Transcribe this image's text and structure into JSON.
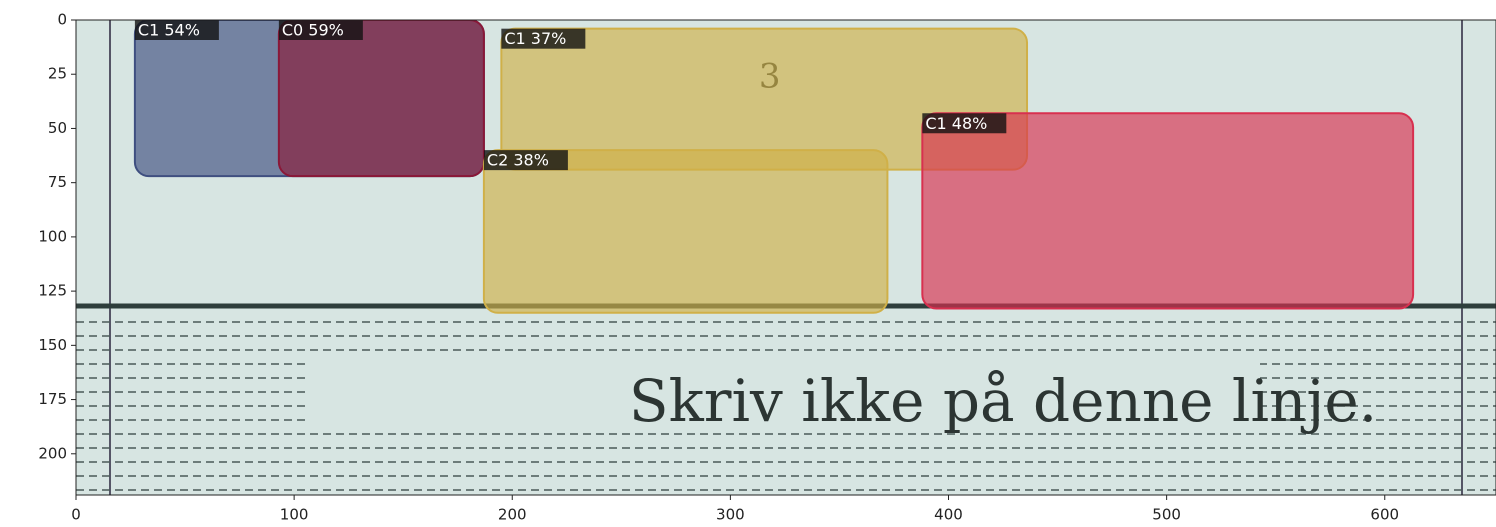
{
  "chart_data": {
    "type": "detections",
    "xlim": [
      0,
      651
    ],
    "ylim": [
      219,
      0
    ],
    "xticks": [
      0,
      100,
      200,
      300,
      400,
      500,
      600
    ],
    "yticks": [
      0,
      25,
      50,
      75,
      100,
      125,
      150,
      175,
      200
    ],
    "image_texts": [
      {
        "text": "Skriv ikke på denne linje.",
        "x": 425,
        "y": 178
      },
      {
        "text": "3",
        "x": 318,
        "y": 27
      }
    ],
    "boxes": [
      {
        "label": "C1 54%",
        "color": "#3f4f80",
        "x0": 27,
        "y0": 0,
        "x1": 187,
        "y1": 72
      },
      {
        "label": "C0 59%",
        "color": "#8a1838",
        "x0": 93,
        "y0": 0,
        "x1": 187,
        "y1": 72
      },
      {
        "label": "C1 37%",
        "color": "#d0b048",
        "x0": 195,
        "y0": 4,
        "x1": 436,
        "y1": 69
      },
      {
        "label": "C2 38%",
        "color": "#d0b048",
        "x0": 187,
        "y0": 60,
        "x1": 372,
        "y1": 135
      },
      {
        "label": "C1 48%",
        "color": "#d8304f",
        "x0": 388,
        "y0": 43,
        "x1": 613,
        "y1": 133
      }
    ]
  }
}
